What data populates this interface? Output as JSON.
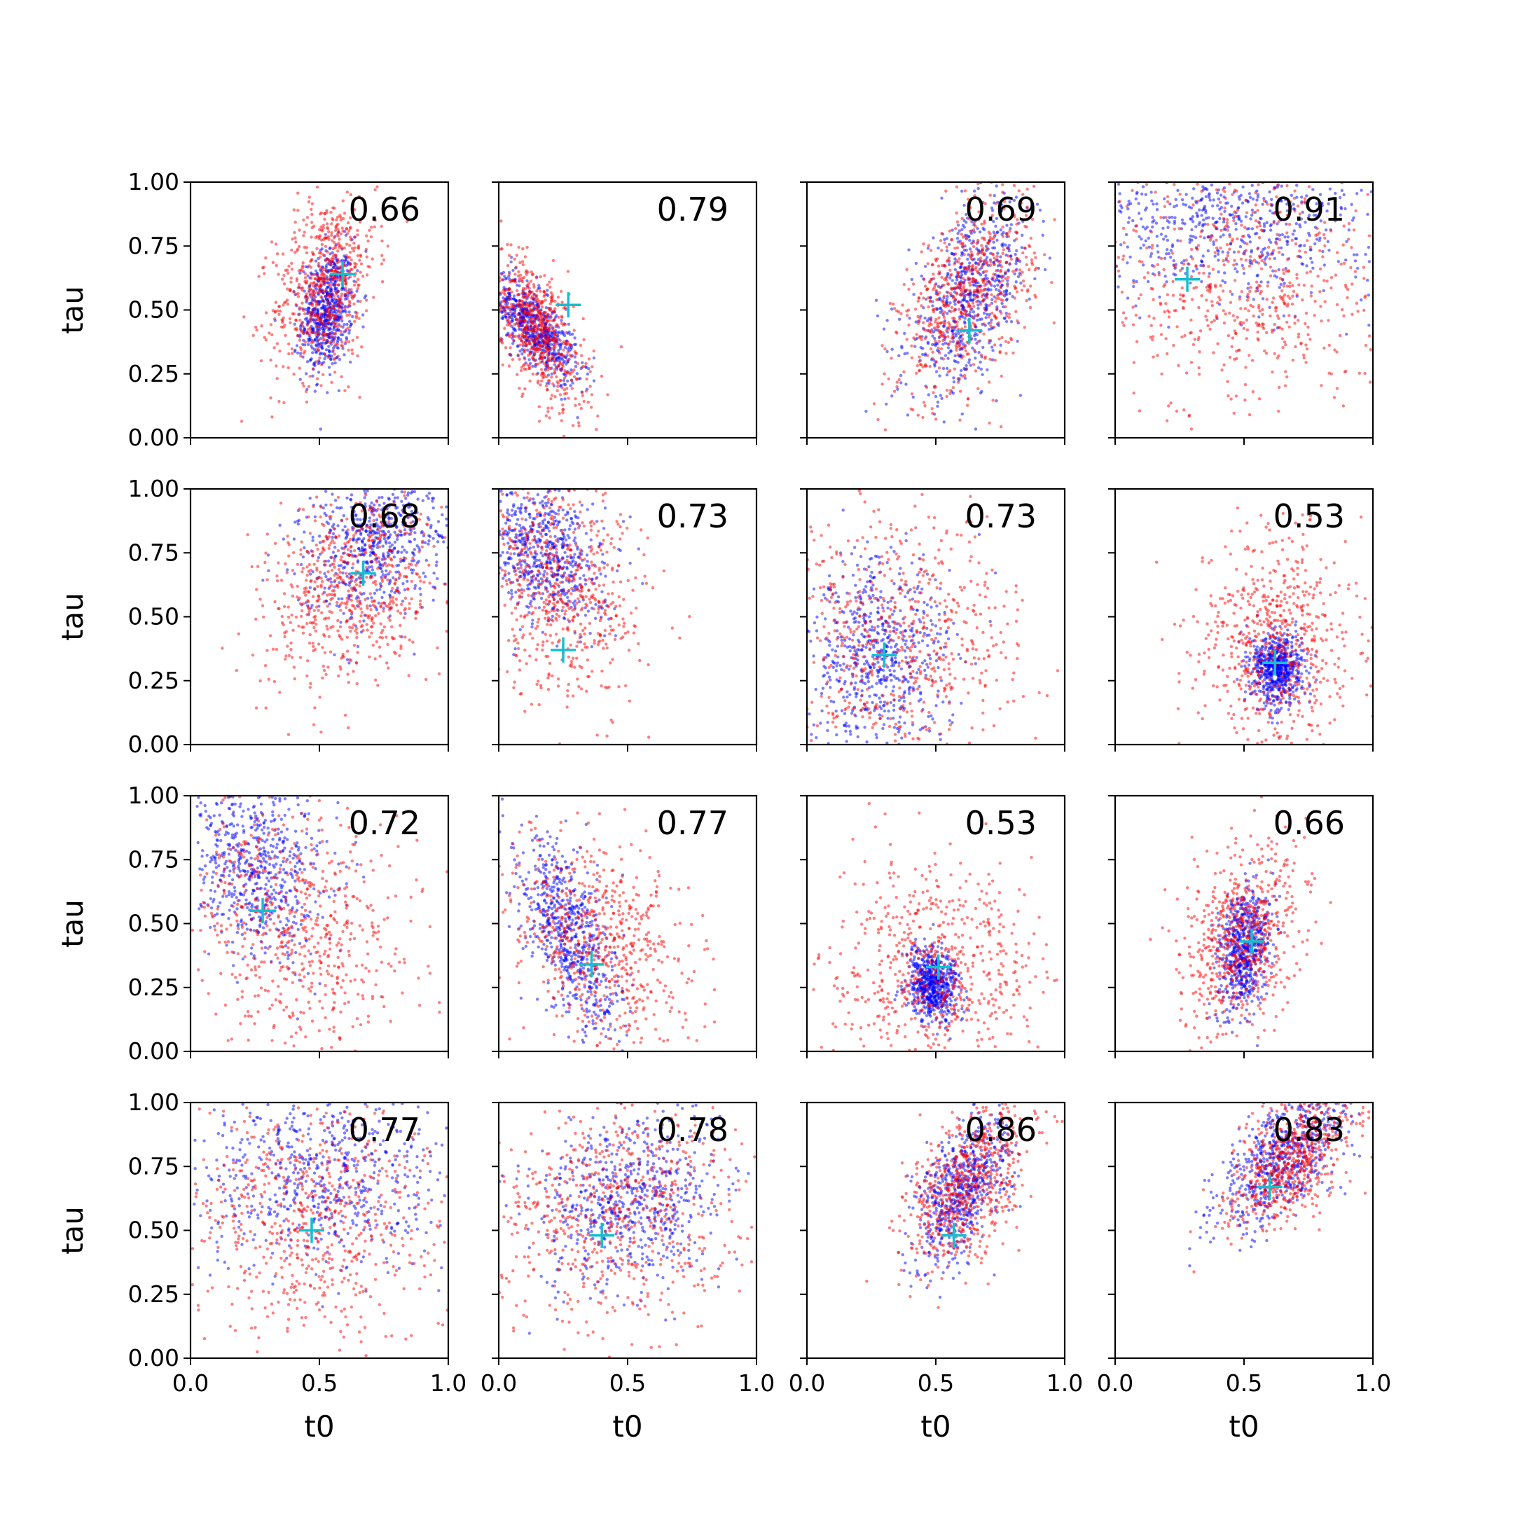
{
  "figure": {
    "xlabel": "t0",
    "ylabel": "tau",
    "x_ticks": [
      "0.0",
      "0.5",
      "1.0"
    ],
    "y_ticks": [
      "0.00",
      "0.25",
      "0.50",
      "0.75",
      "1.00"
    ],
    "colors": {
      "series_a": "#0000ff",
      "series_b": "#ff0000",
      "marker": "#17becf"
    }
  },
  "chart_data": [
    {
      "type": "scatter",
      "row": 0,
      "col": 0,
      "annotation": "0.66",
      "marker": [
        0.59,
        0.64
      ],
      "xlim": [
        0,
        1
      ],
      "ylim": [
        0,
        1
      ],
      "series": [
        {
          "color": "blue",
          "center": [
            0.53,
            0.5
          ],
          "spread": [
            0.05,
            0.12
          ],
          "corr": 0.2
        },
        {
          "color": "red",
          "center": [
            0.52,
            0.6
          ],
          "spread": [
            0.1,
            0.18
          ],
          "corr": 0.3
        }
      ]
    },
    {
      "type": "scatter",
      "row": 0,
      "col": 1,
      "annotation": "0.79",
      "marker": [
        0.27,
        0.52
      ],
      "xlim": [
        0,
        1
      ],
      "ylim": [
        0,
        1
      ],
      "series": [
        {
          "color": "blue",
          "center": [
            0.14,
            0.43
          ],
          "spread": [
            0.08,
            0.1
          ],
          "corr": -0.7
        },
        {
          "color": "red",
          "center": [
            0.15,
            0.42
          ],
          "spread": [
            0.09,
            0.15
          ],
          "corr": -0.6
        }
      ]
    },
    {
      "type": "scatter",
      "row": 0,
      "col": 2,
      "annotation": "0.69",
      "marker": [
        0.63,
        0.42
      ],
      "xlim": [
        0,
        1
      ],
      "ylim": [
        0,
        1
      ],
      "series": [
        {
          "color": "blue",
          "center": [
            0.63,
            0.55
          ],
          "spread": [
            0.12,
            0.18
          ],
          "corr": 0.5
        },
        {
          "color": "red",
          "center": [
            0.62,
            0.55
          ],
          "spread": [
            0.13,
            0.2
          ],
          "corr": 0.5
        }
      ]
    },
    {
      "type": "scatter",
      "row": 0,
      "col": 3,
      "annotation": "0.91",
      "marker": [
        0.28,
        0.62
      ],
      "xlim": [
        0,
        1
      ],
      "ylim": [
        0,
        1
      ],
      "series": [
        {
          "color": "blue",
          "center": [
            0.45,
            0.85
          ],
          "spread": [
            0.28,
            0.15
          ],
          "corr": 0.0
        },
        {
          "color": "red",
          "center": [
            0.5,
            0.6
          ],
          "spread": [
            0.28,
            0.26
          ],
          "corr": 0.0
        }
      ]
    },
    {
      "type": "scatter",
      "row": 1,
      "col": 0,
      "annotation": "0.68",
      "marker": [
        0.67,
        0.67
      ],
      "xlim": [
        0,
        1
      ],
      "ylim": [
        0,
        1
      ],
      "series": [
        {
          "color": "blue",
          "center": [
            0.72,
            0.8
          ],
          "spread": [
            0.15,
            0.15
          ],
          "corr": 0.3
        },
        {
          "color": "red",
          "center": [
            0.63,
            0.62
          ],
          "spread": [
            0.17,
            0.2
          ],
          "corr": 0.3
        }
      ]
    },
    {
      "type": "scatter",
      "row": 1,
      "col": 1,
      "annotation": "0.73",
      "marker": [
        0.25,
        0.37
      ],
      "xlim": [
        0,
        1
      ],
      "ylim": [
        0,
        1
      ],
      "series": [
        {
          "color": "blue",
          "center": [
            0.17,
            0.75
          ],
          "spread": [
            0.12,
            0.14
          ],
          "corr": -0.3
        },
        {
          "color": "red",
          "center": [
            0.25,
            0.62
          ],
          "spread": [
            0.16,
            0.22
          ],
          "corr": -0.2
        }
      ]
    },
    {
      "type": "scatter",
      "row": 1,
      "col": 2,
      "annotation": "0.73",
      "marker": [
        0.3,
        0.35
      ],
      "xlim": [
        0,
        1
      ],
      "ylim": [
        0,
        1
      ],
      "series": [
        {
          "color": "blue",
          "center": [
            0.28,
            0.33
          ],
          "spread": [
            0.14,
            0.2
          ],
          "corr": 0.0
        },
        {
          "color": "red",
          "center": [
            0.35,
            0.4
          ],
          "spread": [
            0.24,
            0.25
          ],
          "corr": 0.0
        }
      ]
    },
    {
      "type": "scatter",
      "row": 1,
      "col": 3,
      "annotation": "0.53",
      "marker": [
        0.62,
        0.32
      ],
      "xlim": [
        0,
        1
      ],
      "ylim": [
        0,
        1
      ],
      "series": [
        {
          "color": "blue",
          "center": [
            0.63,
            0.3
          ],
          "spread": [
            0.05,
            0.07
          ],
          "corr": 0.0
        },
        {
          "color": "red",
          "center": [
            0.63,
            0.4
          ],
          "spread": [
            0.15,
            0.22
          ],
          "corr": 0.0
        }
      ]
    },
    {
      "type": "scatter",
      "row": 2,
      "col": 0,
      "annotation": "0.72",
      "marker": [
        0.28,
        0.55
      ],
      "xlim": [
        0,
        1
      ],
      "ylim": [
        0,
        1
      ],
      "series": [
        {
          "color": "blue",
          "center": [
            0.25,
            0.72
          ],
          "spread": [
            0.14,
            0.18
          ],
          "corr": -0.2
        },
        {
          "color": "red",
          "center": [
            0.4,
            0.5
          ],
          "spread": [
            0.22,
            0.25
          ],
          "corr": -0.2
        }
      ]
    },
    {
      "type": "scatter",
      "row": 2,
      "col": 1,
      "annotation": "0.77",
      "marker": [
        0.36,
        0.34
      ],
      "xlim": [
        0,
        1
      ],
      "ylim": [
        0,
        1
      ],
      "series": [
        {
          "color": "blue",
          "center": [
            0.27,
            0.45
          ],
          "spread": [
            0.1,
            0.2
          ],
          "corr": -0.6
        },
        {
          "color": "red",
          "center": [
            0.4,
            0.4
          ],
          "spread": [
            0.18,
            0.22
          ],
          "corr": -0.3
        }
      ]
    },
    {
      "type": "scatter",
      "row": 2,
      "col": 2,
      "annotation": "0.53",
      "marker": [
        0.51,
        0.33
      ],
      "xlim": [
        0,
        1
      ],
      "ylim": [
        0,
        1
      ],
      "series": [
        {
          "color": "blue",
          "center": [
            0.49,
            0.26
          ],
          "spread": [
            0.05,
            0.07
          ],
          "corr": 0.0
        },
        {
          "color": "red",
          "center": [
            0.5,
            0.32
          ],
          "spread": [
            0.2,
            0.2
          ],
          "corr": 0.0
        }
      ]
    },
    {
      "type": "scatter",
      "row": 2,
      "col": 3,
      "annotation": "0.66",
      "marker": [
        0.53,
        0.43
      ],
      "xlim": [
        0,
        1
      ],
      "ylim": [
        0,
        1
      ],
      "series": [
        {
          "color": "blue",
          "center": [
            0.5,
            0.4
          ],
          "spread": [
            0.05,
            0.12
          ],
          "corr": 0.3
        },
        {
          "color": "red",
          "center": [
            0.5,
            0.45
          ],
          "spread": [
            0.12,
            0.18
          ],
          "corr": 0.3
        }
      ]
    },
    {
      "type": "scatter",
      "row": 3,
      "col": 0,
      "annotation": "0.77",
      "marker": [
        0.47,
        0.5
      ],
      "xlim": [
        0,
        1
      ],
      "ylim": [
        0,
        1
      ],
      "series": [
        {
          "color": "blue",
          "center": [
            0.5,
            0.72
          ],
          "spread": [
            0.25,
            0.18
          ],
          "corr": 0.0
        },
        {
          "color": "red",
          "center": [
            0.45,
            0.55
          ],
          "spread": [
            0.25,
            0.25
          ],
          "corr": 0.0
        }
      ]
    },
    {
      "type": "scatter",
      "row": 3,
      "col": 1,
      "annotation": "0.78",
      "marker": [
        0.4,
        0.48
      ],
      "xlim": [
        0,
        1
      ],
      "ylim": [
        0,
        1
      ],
      "series": [
        {
          "color": "blue",
          "center": [
            0.5,
            0.62
          ],
          "spread": [
            0.18,
            0.18
          ],
          "corr": 0.2
        },
        {
          "color": "red",
          "center": [
            0.45,
            0.55
          ],
          "spread": [
            0.24,
            0.22
          ],
          "corr": 0.1
        }
      ]
    },
    {
      "type": "scatter",
      "row": 3,
      "col": 2,
      "annotation": "0.86",
      "marker": [
        0.57,
        0.48
      ],
      "xlim": [
        0,
        1
      ],
      "ylim": [
        0,
        1
      ],
      "series": [
        {
          "color": "blue",
          "center": [
            0.6,
            0.65
          ],
          "spread": [
            0.09,
            0.15
          ],
          "corr": 0.5
        },
        {
          "color": "red",
          "center": [
            0.62,
            0.68
          ],
          "spread": [
            0.12,
            0.17
          ],
          "corr": 0.5
        }
      ]
    },
    {
      "type": "scatter",
      "row": 3,
      "col": 3,
      "annotation": "0.83",
      "marker": [
        0.6,
        0.67
      ],
      "xlim": [
        0,
        1
      ],
      "ylim": [
        0,
        1
      ],
      "series": [
        {
          "color": "blue",
          "center": [
            0.65,
            0.78
          ],
          "spread": [
            0.12,
            0.13
          ],
          "corr": 0.6
        },
        {
          "color": "red",
          "center": [
            0.68,
            0.78
          ],
          "spread": [
            0.13,
            0.14
          ],
          "corr": 0.6
        }
      ]
    }
  ]
}
